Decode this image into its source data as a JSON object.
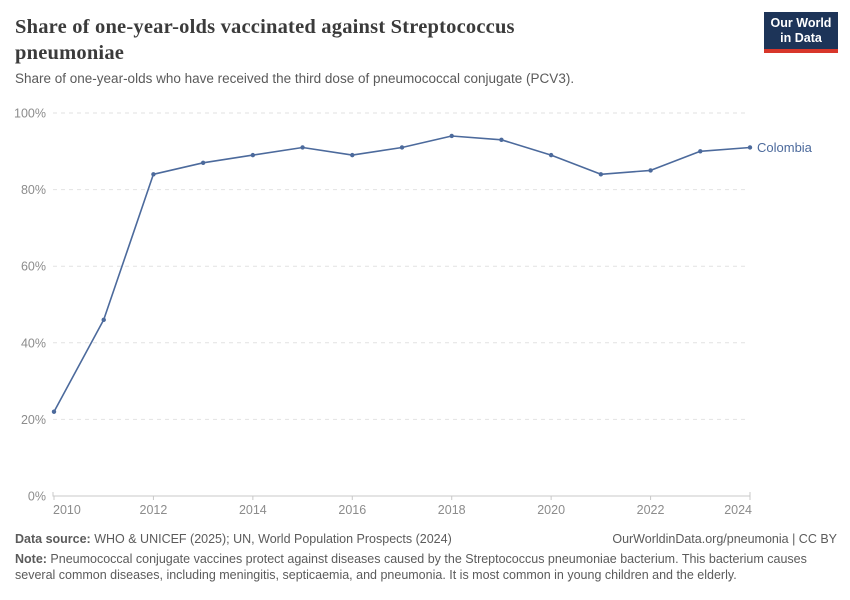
{
  "header": {
    "title": "Share of one-year-olds vaccinated against Streptococcus pneumoniae",
    "subtitle": "Share of one-year-olds who have received the third dose of pneumococcal conjugate (PCV3)."
  },
  "logo": {
    "line1": "Our World",
    "line2": "in Data",
    "bg_color": "#1d3458",
    "accent_color": "#d8362a"
  },
  "chart_data": {
    "type": "line",
    "title": "Share of one-year-olds vaccinated against Streptococcus pneumoniae",
    "xlabel": "",
    "ylabel": "",
    "x": [
      2010,
      2011,
      2012,
      2013,
      2014,
      2015,
      2016,
      2017,
      2018,
      2019,
      2020,
      2021,
      2022,
      2023,
      2024
    ],
    "series": [
      {
        "name": "Colombia",
        "color": "#4c6a9c",
        "values": [
          22,
          46,
          84,
          87,
          89,
          91,
          89,
          91,
          94,
          93,
          89,
          84,
          85,
          90,
          91
        ]
      }
    ],
    "ylim": [
      0,
      100
    ],
    "yticks": [
      0,
      20,
      40,
      60,
      80,
      100
    ],
    "ytick_suffix": "%",
    "xticks": [
      2010,
      2012,
      2014,
      2016,
      2018,
      2020,
      2022,
      2024
    ],
    "grid": "horizontal-dashed",
    "legend_position": "line-end-label",
    "colors": {
      "gridline": "#e2e2e2",
      "axis": "#c8c8c8",
      "tick_text": "#8c8c8c"
    }
  },
  "footer": {
    "datasource_label": "Data source:",
    "datasource_text": " WHO & UNICEF (2025); UN, World Population Prospects (2024)",
    "rights": "OurWorldinData.org/pneumonia | CC BY",
    "note_label": "Note:",
    "note_text": " Pneumococcal conjugate vaccines protect against diseases caused by the Streptococcus pneumoniae bacterium. This bacterium causes several common diseases, including meningitis, septicaemia, and pneumonia. It is most common in young children and the elderly."
  }
}
